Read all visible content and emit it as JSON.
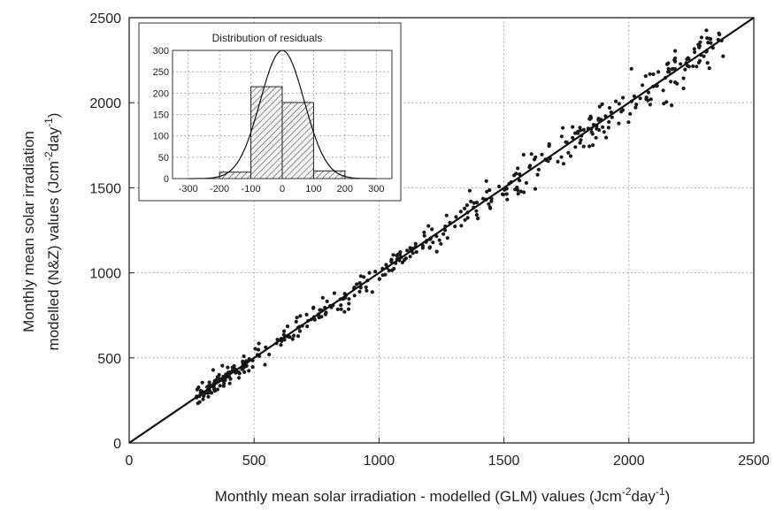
{
  "chart_data": [
    {
      "type": "scatter",
      "xlabel": "Monthly mean solar irradiation - modelled (GLM) values (Jcm",
      "xlabel_unit_exp1": "-2",
      "xlabel_unit_mid": "day",
      "xlabel_unit_exp2": "-1",
      "xlabel_unit_end": ")",
      "ylabel_line1": "Monthly mean solar irradiation",
      "ylabel_line2": "modelled (N&Z) values (Jcm",
      "ylabel_unit_exp1": "-2",
      "ylabel_unit_mid": "day",
      "ylabel_unit_exp2": "-1",
      "ylabel_unit_end": ")",
      "xlim": [
        0,
        2500
      ],
      "ylim": [
        0,
        2500
      ],
      "xticks": [
        "0",
        "500",
        "1000",
        "1500",
        "2000",
        "2500"
      ],
      "yticks": [
        "0",
        "500",
        "1000",
        "1500",
        "2000",
        "2500"
      ],
      "grid": true,
      "fit_line": {
        "x": [
          0,
          2500
        ],
        "y": [
          0,
          2500
        ]
      },
      "clusters": [
        {
          "x_from": 270,
          "x_to": 480,
          "count": 90,
          "spread": 28
        },
        {
          "x_from": 480,
          "x_to": 800,
          "count": 55,
          "spread": 32
        },
        {
          "x_from": 800,
          "x_to": 1200,
          "count": 75,
          "spread": 38
        },
        {
          "x_from": 1200,
          "x_to": 1550,
          "count": 55,
          "spread": 45
        },
        {
          "x_from": 1550,
          "x_to": 1900,
          "count": 70,
          "spread": 55
        },
        {
          "x_from": 1900,
          "x_to": 2380,
          "count": 95,
          "spread": 60
        }
      ]
    },
    {
      "type": "bar",
      "title": "Distribution of residuals",
      "bin_edges": [
        -200,
        -100,
        0,
        100,
        200
      ],
      "values": [
        15,
        215,
        178,
        18
      ],
      "xlim": [
        -350,
        350
      ],
      "ylim": [
        0,
        300
      ],
      "xticks": [
        "-300",
        "-200",
        "-100",
        "0",
        "100",
        "200",
        "300"
      ],
      "yticks": [
        "0",
        "50",
        "100",
        "150",
        "200",
        "250",
        "300"
      ],
      "grid": true,
      "normal_curve": {
        "mean": 0,
        "sd": 70,
        "peak": 300
      }
    }
  ]
}
